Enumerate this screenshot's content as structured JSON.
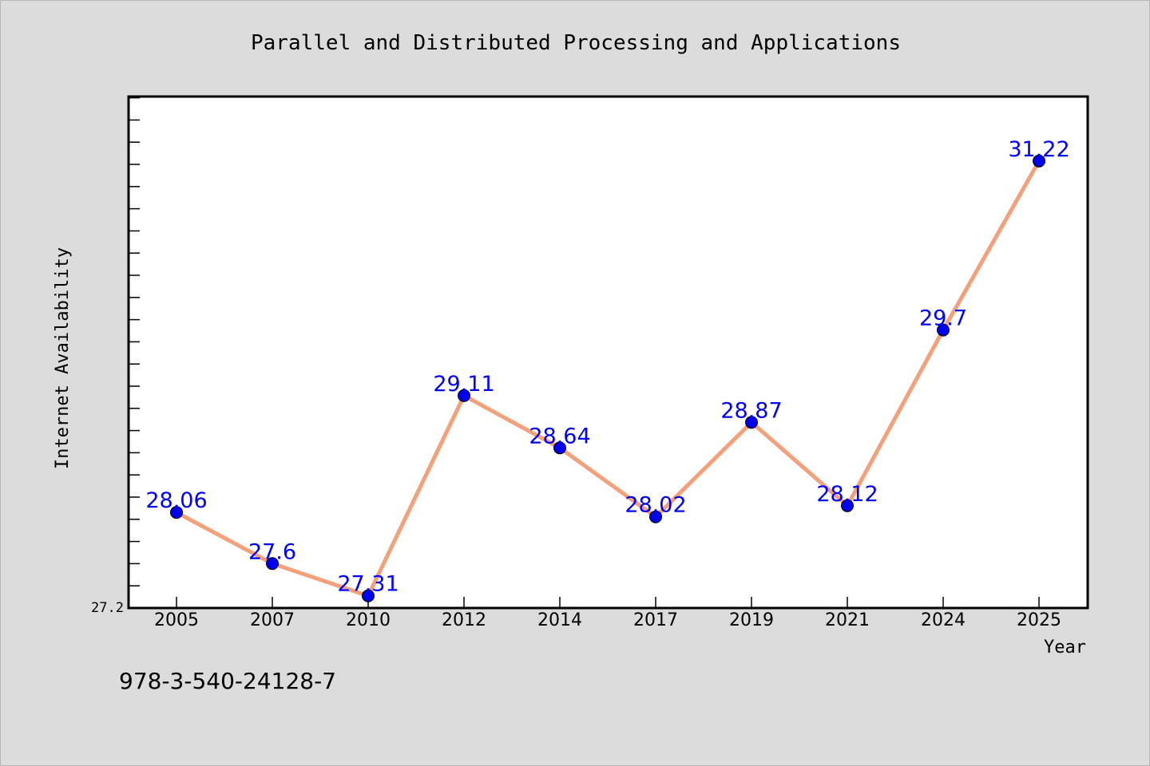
{
  "chart_data": {
    "type": "line",
    "title": "Parallel and Distributed Processing and Applications",
    "xlabel": "Year",
    "ylabel": "Internet Availability",
    "footnote": "978-3-540-24128-7",
    "categories": [
      "2005",
      "2007",
      "2010",
      "2012",
      "2014",
      "2017",
      "2019",
      "2021",
      "2024",
      "2025"
    ],
    "series": [
      {
        "values": [
          28.06,
          27.6,
          27.31,
          29.11,
          28.64,
          28.02,
          28.87,
          28.12,
          29.7,
          31.22
        ],
        "data_labels": [
          "28.06",
          "27.6",
          "27.31",
          "29.11",
          "28.64",
          "28.02",
          "28.87",
          "28.12",
          "29.7",
          "31.22"
        ]
      }
    ],
    "ytick_label": "27.2",
    "ylim": [
      27.2,
      31.8
    ],
    "grid": false,
    "legend": "none",
    "colors": {
      "line": "#f4a07a",
      "marker": "#0000ee",
      "data_label": "#0000ff",
      "background": "#dcdcdc",
      "plot_area": "#ffffff"
    }
  }
}
